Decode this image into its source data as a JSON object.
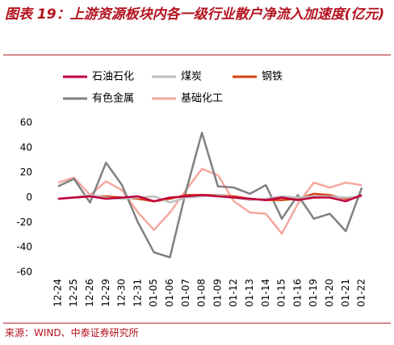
{
  "chart_data": {
    "type": "line",
    "title": "图表 19：上游资源板块内各一级行业散户净流入加速度(亿元)",
    "source": "来源：WIND、中泰证券研究所",
    "categories": [
      "12-24",
      "12-25",
      "12-26",
      "12-29",
      "12-30",
      "12-31",
      "01-05",
      "01-06",
      "01-07",
      "01-08",
      "01-09",
      "01-12",
      "01-13",
      "01-14",
      "01-15",
      "01-16",
      "01-19",
      "01-20",
      "01-21",
      "01-22"
    ],
    "series": [
      {
        "name": "石油石化",
        "color": "#c0003c",
        "values": [
          -1,
          0,
          1,
          -1,
          0,
          1,
          -3,
          0,
          1,
          2,
          1,
          0,
          -1,
          -2,
          0,
          -2,
          0,
          0,
          -3,
          2
        ]
      },
      {
        "name": "煤炭",
        "color": "#bfbfbf",
        "values": [
          -1,
          0,
          2,
          0,
          -1,
          0,
          1,
          -4,
          0,
          1,
          2,
          0,
          -2,
          -1,
          1,
          0,
          1,
          1,
          0,
          1
        ]
      },
      {
        "name": "钢铁",
        "color": "#d9400f",
        "values": [
          -1,
          0,
          1,
          1,
          0,
          -1,
          -3,
          -1,
          2,
          2,
          2,
          1,
          -1,
          -2,
          -2,
          -1,
          3,
          2,
          -1,
          1
        ]
      },
      {
        "name": "有色金属",
        "color": "#808080",
        "values": [
          9,
          15,
          -4,
          28,
          10,
          -20,
          -44,
          -48,
          5,
          52,
          9,
          8,
          3,
          10,
          -17,
          2,
          -17,
          -13,
          -27,
          8
        ]
      },
      {
        "name": "基础化工",
        "color": "#f5a8a0",
        "values": [
          12,
          16,
          2,
          13,
          6,
          -12,
          -26,
          -12,
          6,
          23,
          18,
          -3,
          -12,
          -13,
          -29,
          -5,
          12,
          8,
          12,
          10
        ]
      }
    ],
    "ylim": [
      -60,
      60
    ],
    "yticks": [
      -60,
      -40,
      -20,
      0,
      20,
      40,
      60
    ]
  }
}
